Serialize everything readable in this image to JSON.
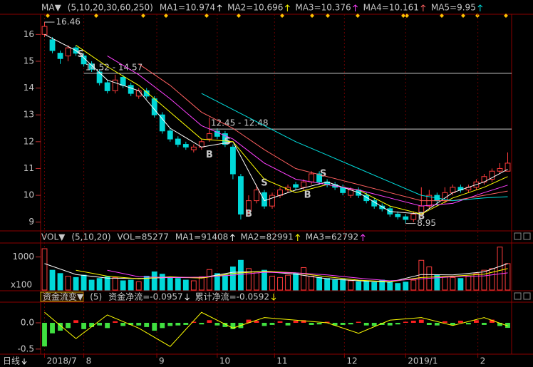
{
  "chart_data": [
    {
      "type": "candlestick",
      "indicator": "MA▼",
      "params": "(5,10,20,30,60,250)",
      "x": [
        0,
        1,
        2,
        3,
        4,
        5,
        6,
        7,
        8,
        9,
        10,
        11,
        12,
        13,
        14,
        15,
        16,
        17,
        18,
        19,
        20,
        21,
        22,
        23,
        24,
        25,
        26,
        27,
        28,
        29,
        30,
        31,
        32,
        33,
        34,
        35,
        36,
        37,
        38,
        39,
        40,
        41,
        42,
        43,
        44,
        45,
        46,
        47,
        48,
        49,
        50,
        51,
        52,
        53,
        54,
        55,
        56,
        57,
        58,
        59
      ],
      "open": [
        16.0,
        15.8,
        15.3,
        15.2,
        15.5,
        15.2,
        14.9,
        14.6,
        14.2,
        13.9,
        14.4,
        14.1,
        13.7,
        13.9,
        13.6,
        13.0,
        12.4,
        12.1,
        11.9,
        11.7,
        11.8,
        12.1,
        12.4,
        12.3,
        11.8,
        10.7,
        9.4,
        9.8,
        10.1,
        9.6,
        10.0,
        10.2,
        10.4,
        10.3,
        10.5,
        10.8,
        10.5,
        10.4,
        10.3,
        10.0,
        10.2,
        10.0,
        9.8,
        9.6,
        9.5,
        9.3,
        9.2,
        9.1,
        9.3,
        9.6,
        10.0,
        9.8,
        10.1,
        10.3,
        10.2,
        10.3,
        10.5,
        10.6,
        10.9,
        10.9
      ],
      "high": [
        16.46,
        15.9,
        15.4,
        15.6,
        15.6,
        15.3,
        15.0,
        14.7,
        14.3,
        14.5,
        14.5,
        14.2,
        14.0,
        14.0,
        13.7,
        13.1,
        12.5,
        12.2,
        12.0,
        11.9,
        12.1,
        12.9,
        12.5,
        12.4,
        11.9,
        10.8,
        10.0,
        10.4,
        10.2,
        10.1,
        10.3,
        10.4,
        10.5,
        10.6,
        10.9,
        10.9,
        10.6,
        10.5,
        10.4,
        10.3,
        10.3,
        10.1,
        9.9,
        9.7,
        9.6,
        9.4,
        9.3,
        9.4,
        10.3,
        10.2,
        10.1,
        10.3,
        10.4,
        10.4,
        10.4,
        10.6,
        10.8,
        11.0,
        11.2,
        11.6
      ],
      "low": [
        15.9,
        15.3,
        14.9,
        15.0,
        15.2,
        14.8,
        14.6,
        14.1,
        13.8,
        13.8,
        14.0,
        13.7,
        13.6,
        13.6,
        12.9,
        12.3,
        12.0,
        11.8,
        11.7,
        11.6,
        11.7,
        12.0,
        12.1,
        11.8,
        10.6,
        9.1,
        9.2,
        9.7,
        9.5,
        9.5,
        9.9,
        10.1,
        10.2,
        10.2,
        10.4,
        10.4,
        10.3,
        10.2,
        10.0,
        9.9,
        9.9,
        9.7,
        9.5,
        9.4,
        9.2,
        9.1,
        8.95,
        9.0,
        9.2,
        9.5,
        9.6,
        9.7,
        10.0,
        10.1,
        10.1,
        10.2,
        10.4,
        10.5,
        10.8,
        10.9
      ],
      "close": [
        16.3,
        15.4,
        15.1,
        15.5,
        15.3,
        14.9,
        14.7,
        14.2,
        13.9,
        14.3,
        14.1,
        13.8,
        13.9,
        13.7,
        13.0,
        12.4,
        12.1,
        11.9,
        11.8,
        11.8,
        12.0,
        12.3,
        12.2,
        11.9,
        10.8,
        9.3,
        9.8,
        10.2,
        9.6,
        10.0,
        10.2,
        10.3,
        10.3,
        10.5,
        10.8,
        10.5,
        10.4,
        10.3,
        10.1,
        10.2,
        10.0,
        9.8,
        9.6,
        9.5,
        9.3,
        9.2,
        9.1,
        9.3,
        9.6,
        10.0,
        9.8,
        10.1,
        10.3,
        10.2,
        10.3,
        10.5,
        10.7,
        10.9,
        11.0,
        11.2
      ],
      "up_color": "#ff3c3c",
      "down_color": "#00d8d8",
      "xlim": [
        -0.5,
        59.5
      ],
      "xticks": [
        {
          "value": 0,
          "label": "2018/7"
        },
        {
          "value": 5,
          "label": "8"
        },
        {
          "value": 14.3,
          "label": "9"
        },
        {
          "value": 22,
          "label": "10"
        },
        {
          "value": 29.3,
          "label": "11"
        },
        {
          "value": 38.2,
          "label": "12"
        },
        {
          "value": 46,
          "label": "2019/1"
        },
        {
          "value": 55.2,
          "label": "2"
        }
      ],
      "ylim": [
        8.7,
        16.7
      ],
      "yticks": [
        9,
        10,
        11,
        12,
        13,
        14,
        15,
        16
      ],
      "series": [
        {
          "name": "MA1=10.974",
          "color": "#ffffff",
          "arrow": "up",
          "x": [
            0,
            4,
            8,
            12,
            16,
            20,
            24,
            28,
            32,
            36,
            40,
            44,
            48,
            52,
            56,
            59
          ],
          "values": [
            16.0,
            15.4,
            14.3,
            13.9,
            12.5,
            11.8,
            12.0,
            9.8,
            10.2,
            10.5,
            10.1,
            9.4,
            9.3,
            10.1,
            10.5,
            10.97
          ]
        },
        {
          "name": "MA2=10.696",
          "color": "#ffff00",
          "arrow": "up",
          "x": [
            0,
            4,
            8,
            12,
            16,
            20,
            24,
            28,
            32,
            36,
            40,
            44,
            48,
            52,
            56,
            59
          ],
          "values": [
            null,
            15.6,
            14.8,
            14.1,
            13.1,
            12.1,
            12.0,
            10.6,
            10.1,
            10.4,
            10.2,
            9.6,
            9.3,
            9.9,
            10.3,
            10.7
          ]
        },
        {
          "name": "MA3=10.376",
          "color": "#ff40ff",
          "arrow": "up",
          "x": [
            0,
            4,
            8,
            12,
            16,
            20,
            24,
            28,
            32,
            36,
            40,
            44,
            48,
            52,
            56,
            59
          ],
          "values": [
            null,
            null,
            15.2,
            14.5,
            13.6,
            12.6,
            12.1,
            11.2,
            10.6,
            10.4,
            10.2,
            9.9,
            9.6,
            9.7,
            10.1,
            10.38
          ]
        },
        {
          "name": "MA4=10.161",
          "color": "#ff6060",
          "arrow": "up",
          "x": [
            0,
            4,
            8,
            12,
            16,
            20,
            24,
            28,
            32,
            36,
            40,
            44,
            48,
            52,
            56,
            59
          ],
          "values": [
            null,
            null,
            null,
            14.9,
            14.1,
            13.1,
            12.5,
            11.7,
            11.0,
            10.7,
            10.4,
            10.1,
            9.8,
            9.8,
            10.0,
            10.16
          ]
        },
        {
          "name": "MA5=9.95",
          "color": "#00e0e0",
          "arrow": "up",
          "x": [
            0,
            4,
            8,
            12,
            16,
            20,
            24,
            28,
            32,
            36,
            40,
            44,
            48,
            52,
            56,
            59
          ],
          "values": [
            null,
            null,
            null,
            null,
            null,
            13.8,
            13.2,
            12.6,
            12.0,
            11.5,
            11.0,
            10.5,
            10.0,
            9.8,
            9.9,
            9.95
          ]
        }
      ],
      "levels": [
        {
          "text": "14.52 - 14.57",
          "x": 5,
          "y": 14.55
        },
        {
          "text": "12.45 - 12.48",
          "x": 21,
          "y": 12.47
        }
      ],
      "extremes": [
        {
          "text": "16.46",
          "x": 0,
          "y": 16.46
        },
        {
          "text": "8.95",
          "x": 46,
          "y": 8.95
        }
      ],
      "signals": [
        {
          "text": "S",
          "x": 4.6,
          "y": 15.25,
          "color": "#50ff50"
        },
        {
          "text": "S",
          "x": 23.3,
          "y": 12.0,
          "color": "#50ff50"
        },
        {
          "text": "S",
          "x": 28,
          "y": 10.45,
          "color": "#50ff50"
        },
        {
          "text": "S",
          "x": 35.5,
          "y": 10.8,
          "color": "#50ff50"
        },
        {
          "text": "B",
          "x": 21,
          "y": 11.5,
          "color": "#ff8c00"
        },
        {
          "text": "B",
          "x": 26,
          "y": 9.3,
          "color": "#ff8c00"
        },
        {
          "text": "B",
          "x": 33.5,
          "y": 10.0,
          "color": "#ff8c00"
        },
        {
          "text": "B",
          "x": 48,
          "y": 9.2,
          "color": "#ff8c00"
        }
      ]
    },
    {
      "type": "bar",
      "indicator": "VOL▼",
      "params": "(5,10,20)",
      "label": "VOL=85277",
      "unit_label": "x100",
      "values": [
        1250,
        600,
        500,
        420,
        380,
        450,
        300,
        350,
        400,
        380,
        280,
        300,
        250,
        420,
        550,
        480,
        380,
        350,
        300,
        280,
        400,
        620,
        500,
        450,
        700,
        900,
        650,
        520,
        600,
        420,
        380,
        450,
        500,
        680,
        420,
        380,
        350,
        300,
        320,
        280,
        250,
        260,
        230,
        300,
        250,
        200,
        240,
        300,
        900,
        700,
        450,
        400,
        380,
        350,
        420,
        500,
        600,
        650,
        1300,
        800
      ],
      "ylim": [
        0,
        1380
      ],
      "yticks": [
        1000
      ],
      "series": [
        {
          "name": "MA1=91408",
          "color": "#ffffff",
          "arrow": "up",
          "x": [
            0,
            4,
            8,
            12,
            16,
            20,
            24,
            28,
            32,
            36,
            40,
            44,
            48,
            52,
            56,
            59
          ],
          "values": [
            800,
            470,
            360,
            350,
            380,
            370,
            540,
            560,
            480,
            340,
            280,
            240,
            470,
            460,
            550,
            800
          ]
        },
        {
          "name": "MA2=82991",
          "color": "#ffff00",
          "arrow": "up",
          "x": [
            0,
            4,
            8,
            12,
            16,
            20,
            24,
            28,
            32,
            36,
            40,
            44,
            48,
            52,
            56,
            59
          ],
          "values": [
            null,
            600,
            420,
            340,
            400,
            360,
            500,
            570,
            520,
            400,
            300,
            250,
            380,
            420,
            480,
            650
          ]
        },
        {
          "name": "MA3=62792",
          "color": "#ff40ff",
          "arrow": "up",
          "x": [
            0,
            4,
            8,
            12,
            16,
            20,
            24,
            28,
            32,
            36,
            40,
            44,
            48,
            52,
            56,
            59
          ],
          "values": [
            null,
            null,
            600,
            400,
            380,
            390,
            450,
            540,
            520,
            460,
            360,
            280,
            340,
            400,
            430,
            520
          ]
        }
      ]
    },
    {
      "type": "flow",
      "indicator": "资金流变▼",
      "params": "(5)",
      "name": "资金净流=-0.0957",
      "arrow": "down",
      "values": [
        -0.45,
        -0.2,
        -0.15,
        -0.1,
        0.05,
        -0.12,
        -0.08,
        -0.05,
        -0.1,
        0.03,
        -0.06,
        -0.04,
        -0.05,
        -0.08,
        -0.15,
        -0.1,
        -0.06,
        -0.05,
        -0.04,
        0.02,
        -0.03,
        0.05,
        -0.05,
        -0.08,
        -0.12,
        -0.1,
        0.06,
        0.04,
        -0.06,
        -0.04,
        0.03,
        -0.05,
        0.04,
        0.05,
        -0.04,
        -0.03,
        0.02,
        -0.05,
        -0.04,
        -0.03,
        0.02,
        -0.05,
        -0.06,
        -0.04,
        -0.05,
        -0.03,
        0.02,
        0.04,
        0.06,
        -0.04,
        -0.05,
        0.03,
        -0.04,
        0.04,
        -0.03,
        0.05,
        -0.04,
        0.06,
        -0.06,
        -0.0957
      ],
      "up_color": "#ff2020",
      "down_color": "#40e040",
      "ylim": [
        -0.57,
        0.38
      ],
      "yticks": [
        {
          "value": 0,
          "label": "0.0"
        },
        -0.5
      ],
      "series": [
        {
          "name": "累计净流=-0.0592",
          "color": "#ffff00",
          "arrow": "down",
          "x": [
            0,
            4,
            8,
            12,
            16,
            20,
            24,
            28,
            32,
            36,
            40,
            44,
            48,
            52,
            56,
            59
          ],
          "values": [
            0.2,
            -0.3,
            0.15,
            -0.1,
            -0.45,
            0.2,
            -0.1,
            0.1,
            0.05,
            0.0,
            -0.2,
            0.05,
            0.1,
            -0.05,
            0.1,
            -0.0592
          ]
        }
      ]
    }
  ],
  "footer": {
    "period": "日线"
  }
}
